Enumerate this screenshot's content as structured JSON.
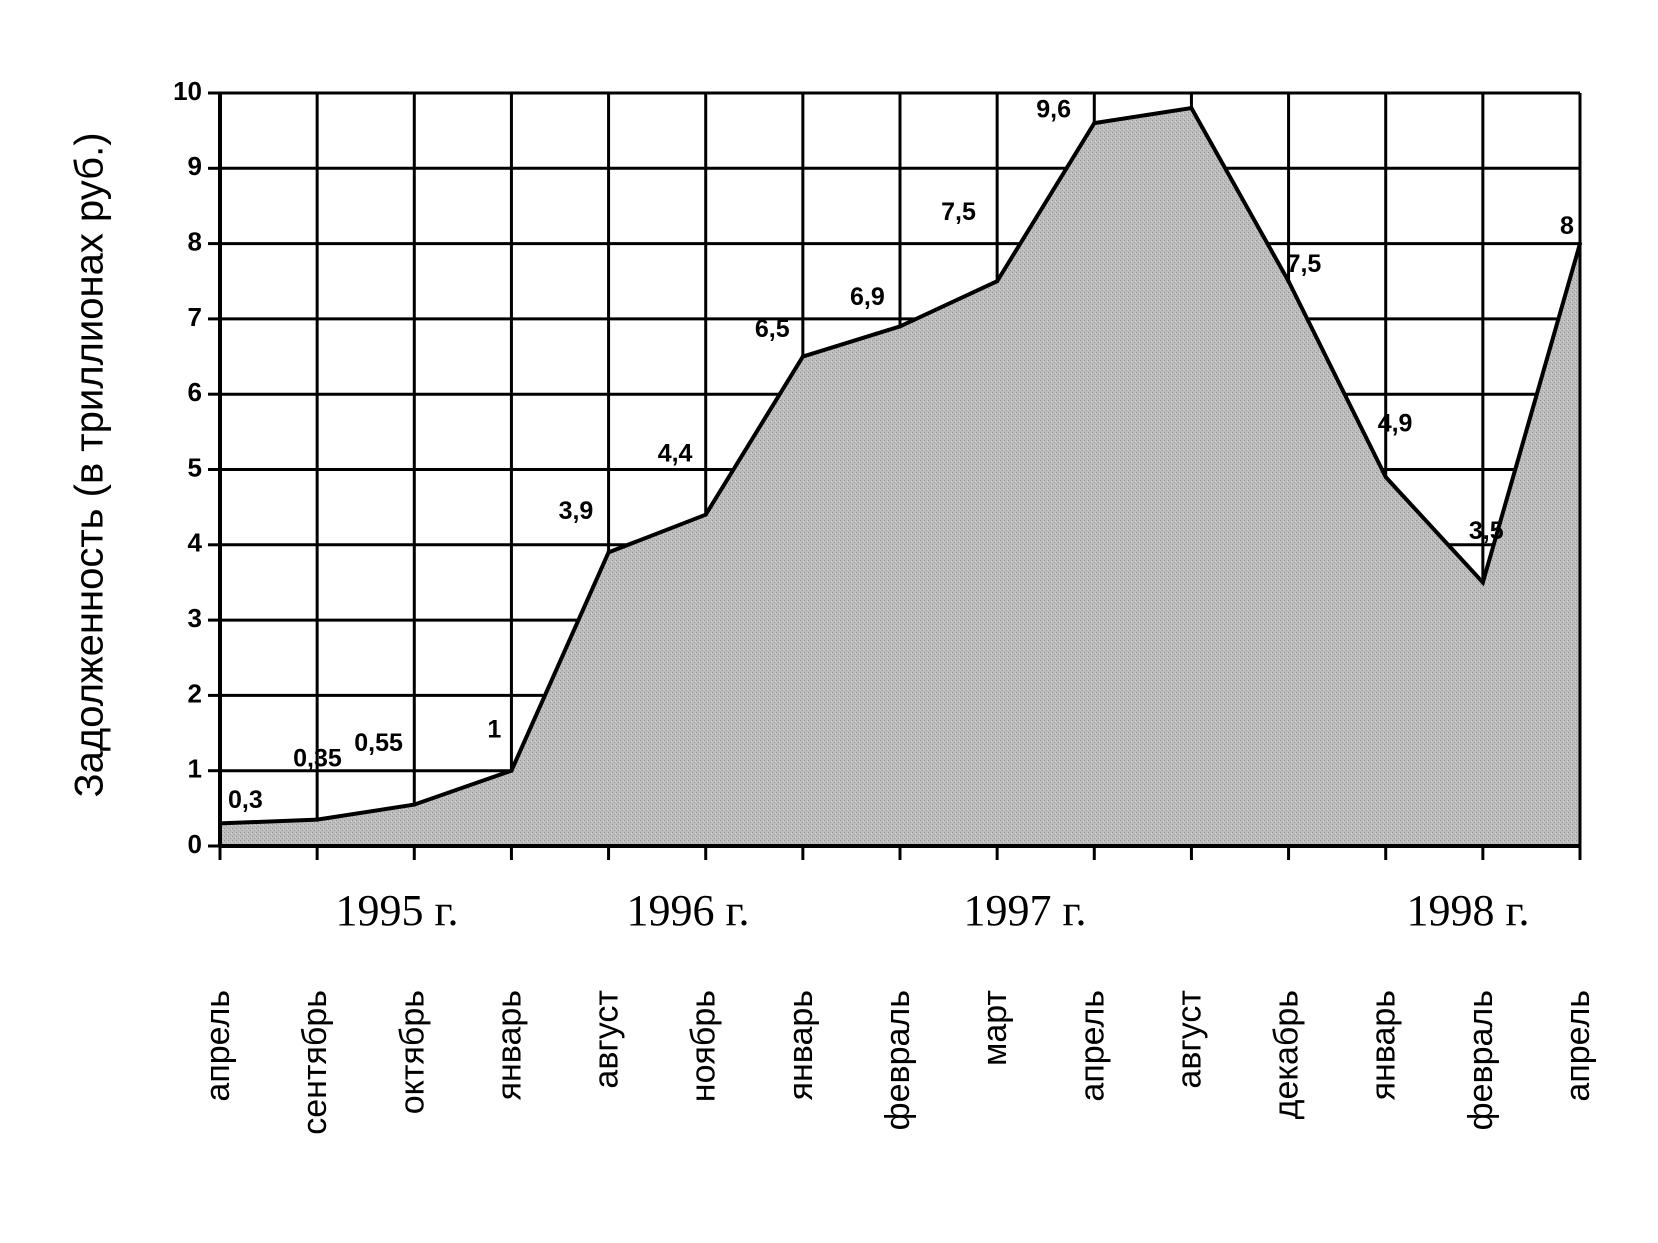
{
  "chart_data": {
    "type": "area",
    "ylabel": "Задолженность (в триллионах руб.)",
    "xlabel": "",
    "ylim": [
      0,
      10
    ],
    "y_ticks": [
      "0",
      "1",
      "2",
      "3",
      "4",
      "5",
      "6",
      "7",
      "8",
      "9",
      "10"
    ],
    "grid": true,
    "categories": [
      "апрель",
      "сентябрь",
      "октябрь",
      "январь",
      "август",
      "ноябрь",
      "январь",
      "февраль",
      "март",
      "апрель",
      "август",
      "декабрь",
      "январь",
      "февраль",
      "апрель"
    ],
    "values": [
      0.3,
      0.35,
      0.55,
      1,
      3.9,
      4.4,
      6.5,
      6.9,
      7.5,
      9.6,
      9.8,
      7.5,
      4.9,
      3.5,
      8
    ],
    "data_labels": [
      "0,3",
      "0,35",
      "0,55",
      "1",
      "3,9",
      "4,4",
      "6,5",
      "6,9",
      "7,5",
      "9,6",
      "",
      "7,5",
      "4,9",
      "3,5",
      "8"
    ],
    "year_labels": [
      "1995 г.",
      "1996 г.",
      "1997 г.",
      "1998 г."
    ],
    "colors": {
      "fill": "#bdbdbd",
      "line": "#000000",
      "grid": "#000000"
    }
  }
}
